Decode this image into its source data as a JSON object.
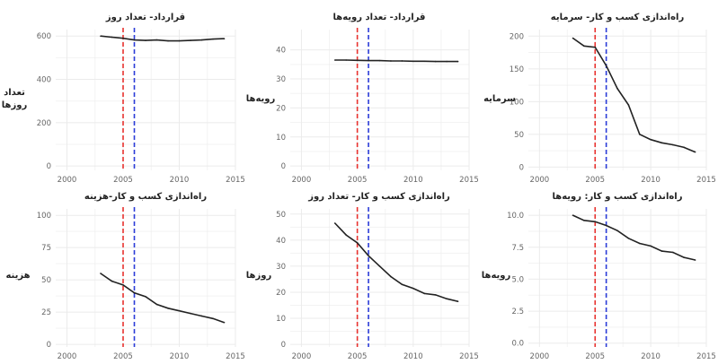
{
  "chart_data": [
    {
      "type": "line",
      "title": "قرارداد- تعداد روز",
      "ylabel_lines": [
        "تعداد",
        "روزها"
      ],
      "xlim": [
        1999,
        2015
      ],
      "ylim": [
        -20,
        630
      ],
      "x_ticks": [
        2000,
        2005,
        2010,
        2015
      ],
      "x_tick_labels": [
        "2000",
        "2005",
        "2010",
        "2015"
      ],
      "y_ticks": [
        0,
        200,
        400,
        600
      ],
      "y_tick_labels": [
        "0",
        "200",
        "400",
        "600"
      ],
      "vlines": [
        {
          "x": 2005,
          "color": "#e8322f"
        },
        {
          "x": 2006,
          "color": "#2b3cd8"
        }
      ],
      "x": [
        2003,
        2004,
        2005,
        2006,
        2007,
        2008,
        2009,
        2010,
        2011,
        2012,
        2013,
        2014
      ],
      "values": [
        600,
        595,
        590,
        582,
        580,
        582,
        578,
        578,
        580,
        582,
        586,
        588
      ],
      "grid": true
    },
    {
      "type": "line",
      "title": "قرارداد- تعداد رویه‌ها",
      "ylabel_lines": [
        "رویه‌ها"
      ],
      "xlim": [
        1999,
        2015
      ],
      "ylim": [
        -1.5,
        47
      ],
      "x_ticks": [
        2000,
        2005,
        2010,
        2015
      ],
      "x_tick_labels": [
        "2000",
        "2005",
        "2010",
        "2015"
      ],
      "y_ticks": [
        0,
        10,
        20,
        30,
        40
      ],
      "y_tick_labels": [
        "0",
        "10",
        "20",
        "30",
        "40"
      ],
      "vlines": [
        {
          "x": 2005,
          "color": "#e8322f"
        },
        {
          "x": 2006,
          "color": "#2b3cd8"
        }
      ],
      "x": [
        2003,
        2004,
        2005,
        2006,
        2007,
        2008,
        2009,
        2010,
        2011,
        2012,
        2013,
        2014
      ],
      "values": [
        36.5,
        36.5,
        36.4,
        36.3,
        36.3,
        36.2,
        36.2,
        36.1,
        36.1,
        36,
        36,
        36
      ],
      "grid": true
    },
    {
      "type": "line",
      "title": "راه‌اندازی کسب و کار- سرمایه",
      "ylabel_lines": [
        "سرمایه"
      ],
      "xlim": [
        1999,
        2015
      ],
      "ylim": [
        -5,
        210
      ],
      "x_ticks": [
        2000,
        2005,
        2010,
        2015
      ],
      "x_tick_labels": [
        "2000",
        "2005",
        "2010",
        "2015"
      ],
      "y_ticks": [
        0,
        50,
        100,
        150,
        200
      ],
      "y_tick_labels": [
        "0",
        "50",
        "100",
        "150",
        "200"
      ],
      "vlines": [
        {
          "x": 2005,
          "color": "#e8322f"
        },
        {
          "x": 2006,
          "color": "#2b3cd8"
        }
      ],
      "x": [
        2003,
        2004,
        2005,
        2006,
        2007,
        2008,
        2009,
        2010,
        2011,
        2012,
        2013,
        2014
      ],
      "values": [
        197,
        185,
        183,
        155,
        120,
        95,
        50,
        42,
        37,
        34,
        30,
        23
      ],
      "grid": true
    },
    {
      "type": "line",
      "title": "راه‌اندازی کسب و کار-هزینه",
      "ylabel_lines": [
        "هزینه"
      ],
      "xlim": [
        1999,
        2015
      ],
      "ylim": [
        -2,
        105
      ],
      "x_ticks": [
        2000,
        2005,
        2010,
        2015
      ],
      "x_tick_labels": [
        "2000",
        "2005",
        "2010",
        "2015"
      ],
      "y_ticks": [
        0,
        25,
        50,
        75,
        100
      ],
      "y_tick_labels": [
        "0",
        "25",
        "50",
        "75",
        "100"
      ],
      "vlines": [
        {
          "x": 2005,
          "color": "#e8322f"
        },
        {
          "x": 2006,
          "color": "#2b3cd8"
        }
      ],
      "x": [
        2003,
        2004,
        2005,
        2006,
        2007,
        2008,
        2009,
        2010,
        2011,
        2012,
        2013,
        2014
      ],
      "values": [
        55,
        49,
        46,
        40,
        37,
        31,
        28,
        26,
        24,
        22,
        20,
        17
      ],
      "grid": true
    },
    {
      "type": "line",
      "title": "راه‌اندازی کسب و کار- تعداد روز",
      "ylabel_lines": [
        "روزها"
      ],
      "xlim": [
        1999,
        2015
      ],
      "ylim": [
        -1,
        52
      ],
      "x_ticks": [
        2000,
        2005,
        2010,
        2015
      ],
      "x_tick_labels": [
        "2000",
        "2005",
        "2010",
        "2015"
      ],
      "y_ticks": [
        0,
        10,
        20,
        30,
        40,
        50
      ],
      "y_tick_labels": [
        "0",
        "10",
        "20",
        "30",
        "40",
        "50"
      ],
      "vlines": [
        {
          "x": 2005,
          "color": "#e8322f"
        },
        {
          "x": 2006,
          "color": "#2b3cd8"
        }
      ],
      "x": [
        2003,
        2004,
        2005,
        2006,
        2007,
        2008,
        2009,
        2010,
        2011,
        2012,
        2013,
        2014
      ],
      "values": [
        46.5,
        42,
        39,
        34,
        30,
        26,
        23,
        21.5,
        19.5,
        19,
        17.5,
        16.5
      ],
      "grid": true
    },
    {
      "type": "line",
      "title": "راه‌اندازی کسب و کار: رویه‌ها",
      "ylabel_lines": [
        "رویه‌ها"
      ],
      "xlim": [
        1999,
        2015
      ],
      "ylim": [
        -0.3,
        10.5
      ],
      "x_ticks": [
        2000,
        2005,
        2010,
        2015
      ],
      "x_tick_labels": [
        "2000",
        "2005",
        "2010",
        "2015"
      ],
      "y_ticks": [
        0,
        2.5,
        5,
        7.5,
        10
      ],
      "y_tick_labels": [
        "0.0",
        "2.5",
        "5.0",
        "7.5",
        "10.0"
      ],
      "vlines": [
        {
          "x": 2005,
          "color": "#e8322f"
        },
        {
          "x": 2006,
          "color": "#2b3cd8"
        }
      ],
      "x": [
        2003,
        2004,
        2005,
        2006,
        2007,
        2008,
        2009,
        2010,
        2011,
        2012,
        2013,
        2014
      ],
      "values": [
        10,
        9.6,
        9.5,
        9.2,
        8.8,
        8.2,
        7.8,
        7.6,
        7.2,
        7.1,
        6.7,
        6.5
      ],
      "grid": true
    }
  ]
}
